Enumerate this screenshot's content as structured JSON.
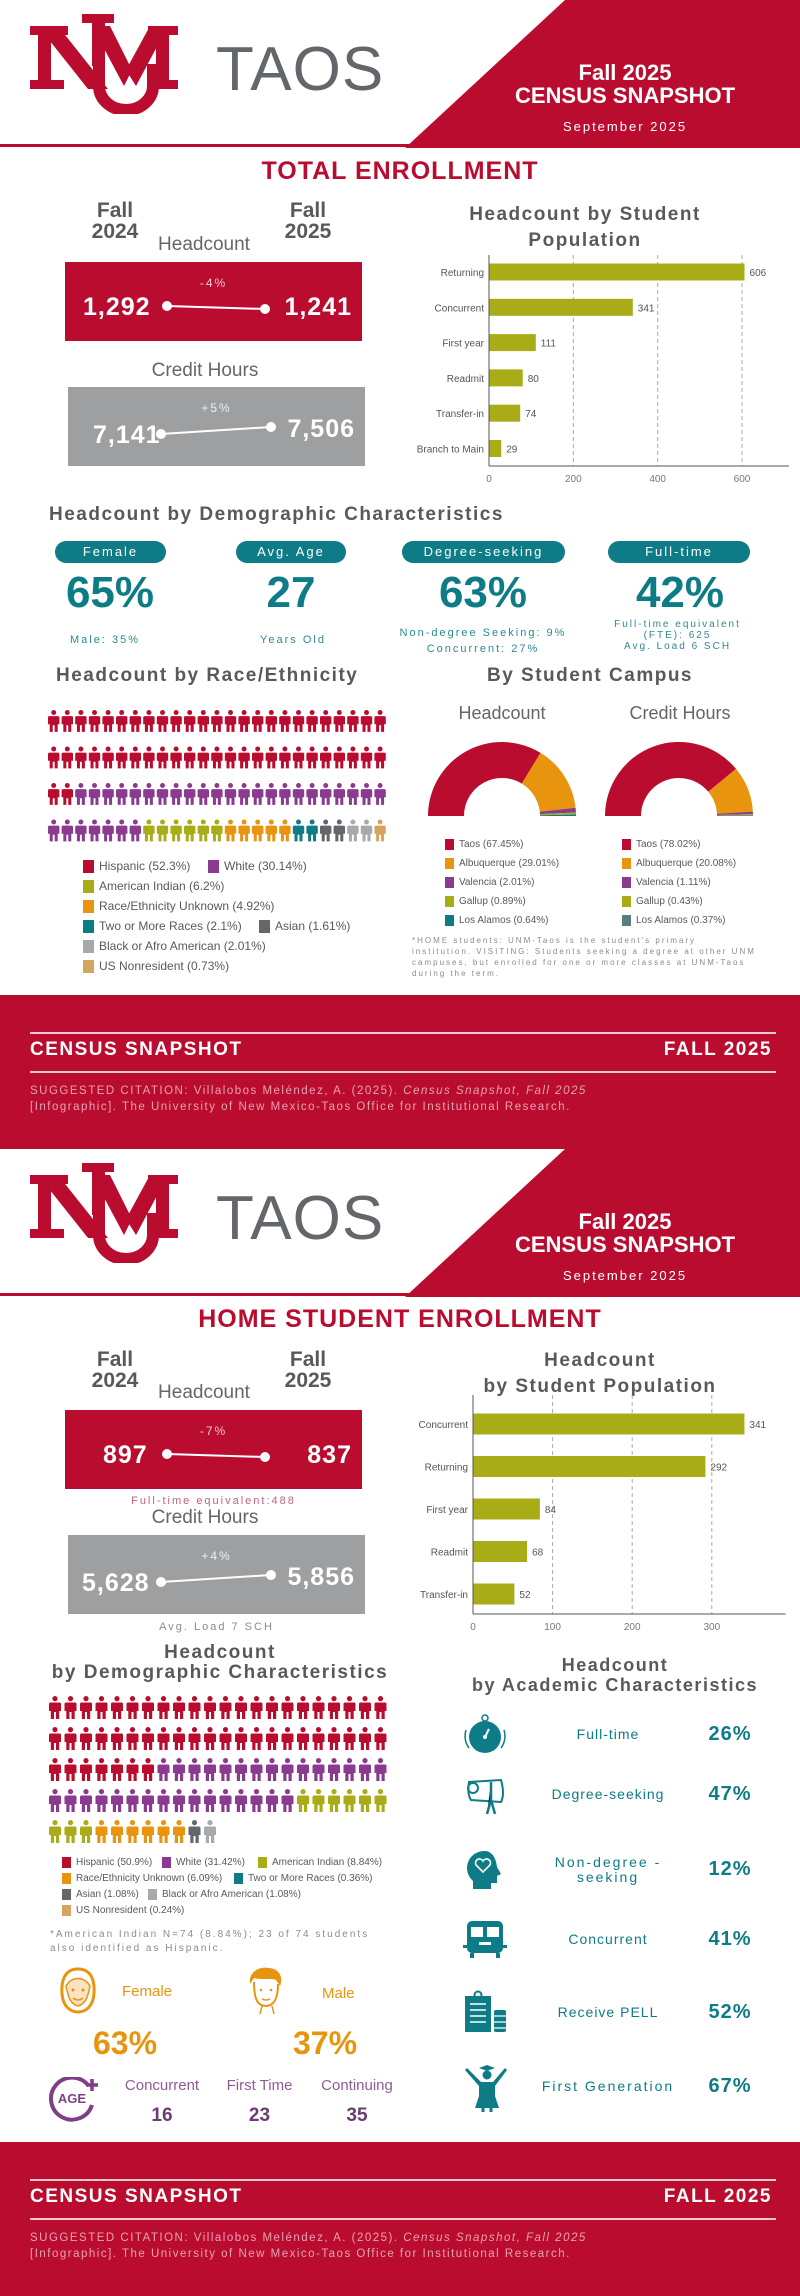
{
  "header": {
    "logo_text": "UNM",
    "campus": "TAOS",
    "term": "Fall 2025",
    "title": "CENSUS SNAPSHOT",
    "date": "September 2025"
  },
  "colors": {
    "brand_red": "#BA0C2F",
    "teal": "#0E7C86",
    "olive": "#A8AD17",
    "purple": "#8A3B8F",
    "orange": "#E8940E"
  },
  "total": {
    "title": "TOTAL ENROLLMENT",
    "fall": "Fall",
    "year_a": "2024",
    "year_b": "2025",
    "headcount": {
      "label": "Headcount",
      "change": "-4%",
      "a": "1,292",
      "b": "1,241"
    },
    "credit": {
      "label": "Credit Hours",
      "change": "+5%",
      "a": "7,141",
      "b": "7,506"
    }
  },
  "demographics": {
    "title": "Headcount by Demographic Characteristics",
    "cards": [
      {
        "label": "Female",
        "value": "65%",
        "sub": [
          "Male: 35%"
        ]
      },
      {
        "label": "Avg. Age",
        "value": "27",
        "sub": [
          "Years Old"
        ]
      },
      {
        "label": "Degree-seeking",
        "value": "63%",
        "sub": [
          "Non-degree Seeking: 9%",
          "Concurrent: 27%"
        ]
      },
      {
        "label": "Full-time",
        "value": "42%",
        "sub": [
          "Full-time equivalent",
          "(FTE): 625",
          "Avg. Load 6 SCH"
        ]
      }
    ]
  },
  "campus": {
    "title": "By Student Campus",
    "note": "*HOME students: UNM-Taos is the student's primary institution. VISITING: Students seeking a degree at other UNM campuses, but enrolled for one or more classes at UNM-Taos during the term."
  },
  "footer": {
    "left": "CENSUS SNAPSHOT",
    "right": "FALL 2025",
    "citation_a": "SUGGESTED CITATION: Villalobos Meléndez, A. (2025). ",
    "citation_italic": "Census Snapshot, Fall 2025",
    "citation_b": "[Infographic]. The University of New Mexico-Taos Office for Institutional Research."
  },
  "home": {
    "title": "HOME STUDENT ENROLLMENT",
    "fall": "Fall",
    "year_a": "2024",
    "year_b": "2025",
    "headcount": {
      "label": "Headcount",
      "change": "-7%",
      "a": "897",
      "b": "837",
      "note": "Full-time equivalent:488"
    },
    "credit": {
      "label": "Credit Hours",
      "change": "+4%",
      "a": "5,628",
      "b": "5,856",
      "note": "Avg. Load 7 SCH"
    },
    "demo_title_1": "Headcount",
    "demo_title_2": "by Demographic Characteristics",
    "race_note": "*American Indian N=74 (8.84%); 23 of 74 students also identified as Hispanic.",
    "gender": {
      "female_label": "Female",
      "female_value": "63%",
      "male_label": "Male",
      "male_value": "37%"
    },
    "age": {
      "icon_text": "AGE",
      "items": [
        {
          "label": "Concurrent",
          "value": "16"
        },
        {
          "label": "First Time",
          "value": "23"
        },
        {
          "label": "Continuing",
          "value": "35"
        }
      ]
    },
    "academic": {
      "title_1": "Headcount",
      "title_2": "by Academic Characteristics",
      "items": [
        {
          "label": "Full-time",
          "value": "26%",
          "icon": "stopwatch-icon"
        },
        {
          "label": "Degree-seeking",
          "value": "47%",
          "icon": "diploma-icon"
        },
        {
          "label": "Non-degree - seeking",
          "value": "12%",
          "icon": "head-heart-icon"
        },
        {
          "label": "Concurrent",
          "value": "41%",
          "icon": "school-bus-icon"
        },
        {
          "label": "Receive PELL",
          "value": "52%",
          "icon": "clipboard-coins-icon"
        },
        {
          "label": "First Generation",
          "value": "67%",
          "icon": "graduate-icon"
        }
      ]
    }
  },
  "chart_data": [
    {
      "type": "bar",
      "orientation": "horizontal",
      "title": "Headcount by Student Population",
      "categories": [
        "Returning",
        "Concurrent",
        "First year",
        "Readmit",
        "Transfer-in",
        "Branch to Main"
      ],
      "values": [
        606,
        341,
        111,
        80,
        74,
        29
      ],
      "xlim": [
        0,
        640
      ],
      "ticks": [
        "0",
        "200",
        "400",
        "600"
      ],
      "tick_values": [
        0,
        200,
        400,
        600
      ],
      "grid": true,
      "color": "#A8AD17"
    },
    {
      "type": "pie",
      "variant": "semi-donut",
      "title": "Headcount",
      "categories": [
        "Taos (67.45%)",
        "Albuquerque (29.01%)",
        "Valencia (2.01%)",
        "Gallup (0.89%)",
        "Los Alamos (0.64%)"
      ],
      "values": [
        67.45,
        29.01,
        2.01,
        0.89,
        0.64
      ],
      "colors": [
        "#BA0C2F",
        "#E8940E",
        "#8A3B8F",
        "#A8AD17",
        "#0E7C86"
      ]
    },
    {
      "type": "pie",
      "variant": "semi-donut",
      "title": "Credit Hours",
      "categories": [
        "Taos (78.02%)",
        "Albuquerque (20.08%)",
        "Valencia (1.11%)",
        "Gallup (0.43%)",
        "Los Alamos (0.37%)"
      ],
      "values": [
        78.02,
        20.08,
        1.11,
        0.43,
        0.37
      ],
      "colors": [
        "#BA0C2F",
        "#E8940E",
        "#8A3B8F",
        "#A8AD17",
        "#5a7d82"
      ]
    },
    {
      "type": "pictograph",
      "title": "Headcount by Race/Ethnicity",
      "per_row": 25,
      "categories": [
        "Hispanic (52.3%)",
        "White (30.14%)",
        "American Indian (6.2%)",
        "Race/Ethnicity Unknown (4.92%)",
        "Two or More Races (2.1%)",
        "Asian (1.61%)",
        "Black or Afro American (2.01%)",
        "US Nonresident (0.73%)"
      ],
      "values": [
        52.3,
        30.14,
        6.2,
        4.92,
        2.1,
        1.61,
        2.01,
        0.73
      ],
      "icon_counts": [
        52,
        30,
        6,
        5,
        2,
        2,
        2,
        1
      ],
      "colors": [
        "#BA0C2F",
        "#8A3B8F",
        "#A8AD17",
        "#E8940E",
        "#0E7C86",
        "#63666A",
        "#A7A9AC",
        "#D6A461"
      ]
    },
    {
      "type": "bar",
      "orientation": "horizontal",
      "title": "Headcount by Student Population",
      "title_1": "Headcount",
      "title_2": "by Student Population",
      "categories": [
        "Concurrent",
        "Returning",
        "First year",
        "Readmit",
        "Transfer-in"
      ],
      "values": [
        341,
        292,
        84,
        68,
        52
      ],
      "xlim": [
        0,
        355
      ],
      "ticks": [
        "0",
        "100",
        "200",
        "300"
      ],
      "tick_values": [
        0,
        100,
        200,
        300
      ],
      "grid": true,
      "color": "#A8AD17"
    },
    {
      "type": "pictograph",
      "title": "Headcount by Demographic Characteristics",
      "per_row": 22,
      "categories": [
        "Hispanic (50.9%)",
        "White (31.42%)",
        "American Indian (8.84%)",
        "Race/Ethnicity Unknown (6.09%)",
        "Two or More Races (0.36%)",
        "Asian (1.08%)",
        "Black or Afro American (1.08%)",
        "US Nonresident (0.24%)"
      ],
      "values": [
        50.9,
        31.42,
        8.84,
        6.09,
        0.36,
        1.08,
        1.08,
        0.24
      ],
      "icon_counts": [
        51,
        31,
        9,
        6,
        0,
        1,
        1,
        0
      ],
      "colors": [
        "#BA0C2F",
        "#8A3B8F",
        "#A8AD17",
        "#E8940E",
        "#0E7C86",
        "#63666A",
        "#A7A9AC",
        "#D6A461"
      ]
    }
  ]
}
